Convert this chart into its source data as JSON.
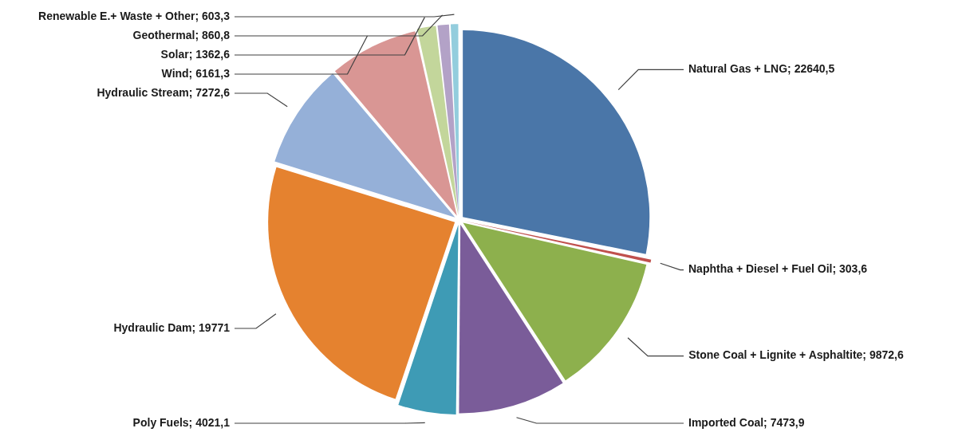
{
  "chart_data": {
    "type": "pie",
    "categories": [
      "Natural Gas + LNG",
      "Naphtha + Diesel + Fuel Oil",
      "Stone Coal + Lignite + Asphaltite",
      "Imported Coal",
      "Poly Fuels",
      "Hydraulic Dam",
      "Hydraulic Stream",
      "Wind",
      "Solar",
      "Geothermal",
      "Renewable E.+ Waste + Other"
    ],
    "values": [
      22640.5,
      303.6,
      9872.6,
      7473.9,
      4021.1,
      19771,
      7272.6,
      6161.3,
      1362.6,
      860.8,
      603.3
    ],
    "value_labels": [
      "22640,5",
      "303,6",
      "9872,6",
      "7473,9",
      "4021,1",
      "19771",
      "7272,6",
      "6161,3",
      "1362,6",
      "860,8",
      "603,3"
    ],
    "colors": [
      "#4a76a8",
      "#c0504d",
      "#8db04d",
      "#7a5c99",
      "#3e9bb5",
      "#e5822f",
      "#95b0d8",
      "#d99694",
      "#c3d69b",
      "#b3a2c7",
      "#93cddd"
    ],
    "legend": false
  }
}
